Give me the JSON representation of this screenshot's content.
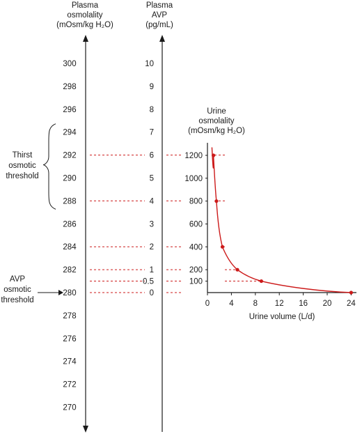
{
  "chart_data": {
    "type": "line",
    "axes": {
      "plasma_osmolality": {
        "label_lines": [
          "Plasma",
          "osmolality",
          "(mOsm/kg H₂O)"
        ],
        "ticks": [
          270,
          272,
          274,
          276,
          278,
          280,
          282,
          284,
          286,
          288,
          290,
          292,
          294,
          296,
          298,
          300
        ]
      },
      "plasma_avp": {
        "label_lines": [
          "Plasma",
          "AVP",
          "(pg/mL)"
        ],
        "ticks": [
          "0",
          "0.5",
          "1",
          "2",
          "3",
          "4",
          "5",
          "6",
          "7",
          "8",
          "9",
          "10"
        ]
      },
      "urine_osmolality": {
        "label_lines": [
          "Urine",
          "osmolality",
          "(mOsm/kg H₂O)"
        ],
        "ticks": [
          100,
          200,
          400,
          600,
          800,
          1000,
          1200
        ],
        "ylim": [
          0,
          1200
        ]
      },
      "urine_volume": {
        "label": "Urine volume (L/d)",
        "ticks": [
          0,
          4,
          8,
          12,
          16,
          20,
          24
        ],
        "xlim": [
          0,
          24
        ]
      }
    },
    "series": [
      {
        "x": [
          1,
          1.5,
          2.5,
          5,
          9,
          24
        ],
        "y": [
          1200,
          800,
          400,
          200,
          100,
          0
        ]
      }
    ],
    "correspondence": [
      {
        "osmolality": 280,
        "avp": "0",
        "urine": 0
      },
      {
        "osmolality": 281,
        "avp": "0.5",
        "urine": 100
      },
      {
        "osmolality": 282,
        "avp": "1",
        "urine": 200
      },
      {
        "osmolality": 284,
        "avp": "2",
        "urine": 400
      },
      {
        "osmolality": 288,
        "avp": "4",
        "urine": 800
      },
      {
        "osmolality": 292,
        "avp": "6",
        "urine": 1200
      }
    ],
    "annotations": {
      "thirst": [
        "Thirst",
        "osmotic",
        "threshold"
      ],
      "avp_threshold": [
        "AVP",
        "osmotic",
        "threshold"
      ]
    },
    "colors": {
      "curve": "#cc1a1a",
      "axis": "#1a1a1a",
      "guide": "#cc1a1a"
    }
  }
}
